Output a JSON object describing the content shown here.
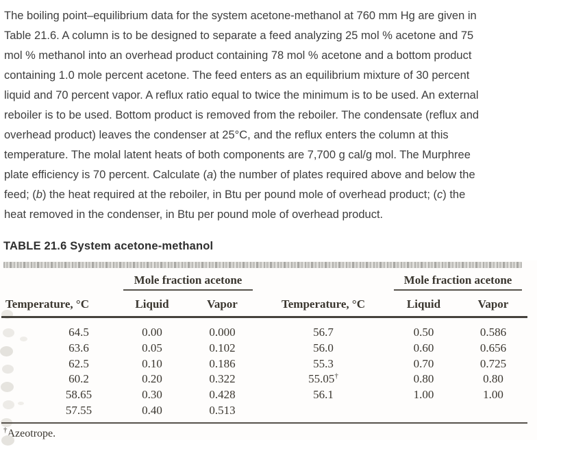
{
  "problem": {
    "lines": [
      [
        {
          "t": "The boiling point–equilibrium data for the system acetone-methanol at 760 mm Hg are given in"
        }
      ],
      [
        {
          "t": "Table 21.6. A column is to be designed to separate a feed analyzing 25 mol % acetone and 75"
        }
      ],
      [
        {
          "t": "mol % methanol into an overhead product containing 78 mol % acetone and a bottom product"
        }
      ],
      [
        {
          "t": "containing 1.0 mole percent acetone. The feed enters as an equilibrium mixture of 30 percent"
        }
      ],
      [
        {
          "t": "liquid and 70 percent vapor. A reflux ratio equal to twice the minimum is to be used. An external"
        }
      ],
      [
        {
          "t": "reboiler is to be used. Bottom product is removed from the reboiler. The condensate (reflux and"
        }
      ],
      [
        {
          "t": "overhead product) leaves the condenser at 25°C, and the reflux enters the column at this"
        }
      ],
      [
        {
          "t": "temperature. The molal latent heats of both components are 7,700 g cal/g mol. The Murphree"
        }
      ],
      [
        {
          "t": "plate efficiency is 70 percent. Calculate ("
        },
        {
          "t": "a",
          "i": true
        },
        {
          "t": ") the number of plates required above and below the"
        }
      ],
      [
        {
          "t": "feed; ("
        },
        {
          "t": "b",
          "i": true
        },
        {
          "t": ") the heat required at the reboiler, in Btu per pound mole of overhead product; ("
        },
        {
          "t": "c",
          "i": true
        },
        {
          "t": ") the"
        }
      ],
      [
        {
          "t": "heat removed in the condenser, in Btu per pound mole of overhead product."
        }
      ]
    ]
  },
  "table": {
    "title": "TABLE 21.6 System acetone-methanol",
    "group_header": "Mole fraction acetone",
    "col_headers": {
      "temperature": "Temperature, °C",
      "liquid": "Liquid",
      "vapor": "Vapor"
    },
    "left_rows": [
      [
        "64.5",
        "0.00",
        "0.000"
      ],
      [
        "63.6",
        "0.05",
        "0.102"
      ],
      [
        "62.5",
        "0.10",
        "0.186"
      ],
      [
        "60.2",
        "0.20",
        "0.322"
      ],
      [
        "58.65",
        "0.30",
        "0.428"
      ],
      [
        "57.55",
        "0.40",
        "0.513"
      ]
    ],
    "right_rows": [
      [
        "56.7",
        "0.50",
        "0.586"
      ],
      [
        "56.0",
        "0.60",
        "0.656"
      ],
      [
        "55.3",
        "0.70",
        "0.725"
      ],
      [
        "55.05†",
        "0.80",
        "0.80"
      ],
      [
        "56.1",
        "1.00",
        "1.00"
      ]
    ],
    "footnote_marker": "†",
    "footnote_text": "Azeotrope."
  },
  "colors": {
    "paragraph_text": "#3d3d3d",
    "table_text": "#3a362f",
    "rule": "#45423c",
    "scan_texture": "#b1b0ac"
  }
}
